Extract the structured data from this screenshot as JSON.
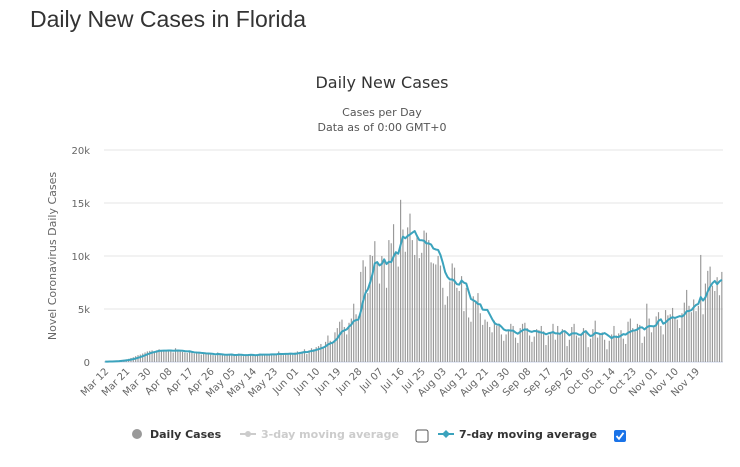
{
  "page": {
    "title": "Daily New Cases in Florida"
  },
  "legend": {
    "items": [
      {
        "label": "Daily Cases",
        "color": "#999999",
        "active": true
      },
      {
        "label": "3-day moving average",
        "color": "#cccccc",
        "active": false,
        "checkbox": false
      },
      {
        "label": "7-day moving average",
        "color": "#3ba3bd",
        "active": true,
        "checkbox": true
      }
    ]
  },
  "chart_data": {
    "type": "bar",
    "title": "Daily New Cases",
    "subtitle_line1": "Cases per Day",
    "subtitle_line2": "Data as of 0:00 GMT+0",
    "ylabel": "Novel Coronavirus Daily Cases",
    "xlabel": "",
    "ylim": [
      0,
      20000
    ],
    "yticks": [
      0,
      5000,
      10000,
      15000,
      20000
    ],
    "ytick_labels": [
      "0",
      "5k",
      "10k",
      "15k",
      "20k"
    ],
    "grid": true,
    "start_date": "Mar 12",
    "xtick_labels": [
      "Mar 12",
      "Mar 21",
      "Mar 30",
      "Apr 08",
      "Apr 17",
      "Apr 26",
      "May 05",
      "May 14",
      "May 23",
      "Jun 01",
      "Jun 10",
      "Jun 19",
      "Jun 28",
      "Jul 07",
      "Jul 16",
      "Jul 25",
      "Aug 03",
      "Aug 12",
      "Aug 21",
      "Aug 30",
      "Sep 08",
      "Sep 17",
      "Sep 26",
      "Oct 05",
      "Oct 14",
      "Oct 23",
      "Nov 01",
      "Nov 10",
      "Nov 19"
    ],
    "xtick_interval_days": 9,
    "series": [
      {
        "name": "Daily Cases",
        "type": "bar",
        "color": "#999999",
        "values": [
          30,
          40,
          60,
          80,
          100,
          120,
          150,
          180,
          200,
          250,
          300,
          380,
          450,
          550,
          650,
          700,
          800,
          900,
          1000,
          1050,
          1100,
          1000,
          1100,
          1200,
          1000,
          1100,
          1050,
          1150,
          1000,
          900,
          1300,
          1100,
          1000,
          950,
          900,
          850,
          1000,
          900,
          800,
          850,
          900,
          700,
          750,
          800,
          850,
          700,
          650,
          600,
          900,
          700,
          650,
          600,
          700,
          750,
          650,
          600,
          700,
          800,
          600,
          550,
          650,
          700,
          750,
          650,
          600,
          700,
          800,
          650,
          750,
          700,
          650,
          800,
          700,
          750,
          1000,
          700,
          650,
          750,
          800,
          850,
          700,
          900,
          1000,
          950,
          1000,
          1200,
          750,
          1100,
          1300,
          1200,
          1400,
          1500,
          1700,
          1300,
          1900,
          2500,
          2000,
          1800,
          2800,
          3200,
          3800,
          4000,
          3300,
          2600,
          3700,
          4100,
          5500,
          4500,
          4300,
          8500,
          9600,
          9000,
          6500,
          10100,
          10000,
          11400,
          9400,
          7400,
          10000,
          9500,
          7000,
          11500,
          11200,
          13000,
          10300,
          9000,
          15300,
          12500,
          10400,
          12700,
          14000,
          11500,
          10100,
          12000,
          9800,
          10300,
          12400,
          12200,
          11500,
          9400,
          9300,
          9200,
          10000,
          9100,
          7000,
          5400,
          6200,
          7600,
          9300,
          8900,
          7000,
          6700,
          8100,
          4800,
          7000,
          4200,
          3800,
          6200,
          5800,
          6500,
          4600,
          3500,
          4000,
          3800,
          3300,
          2800,
          3900,
          3400,
          3500,
          2600,
          2000,
          2600,
          3000,
          3600,
          3400,
          2300,
          1800,
          3200,
          3600,
          3700,
          3200,
          2500,
          1900,
          2400,
          3100,
          3000,
          3400,
          2900,
          1600,
          2500,
          2800,
          3600,
          2100,
          3400,
          2600,
          3100,
          2800,
          1500,
          2100,
          3300,
          3600,
          2500,
          2300,
          2600,
          3200,
          2900,
          1400,
          2200,
          3100,
          3900,
          2300,
          2700,
          2800,
          2100,
          1200,
          2000,
          2600,
          3400,
          2500,
          2700,
          3000,
          2200,
          1700,
          3800,
          4100,
          3200,
          2900,
          3600,
          3500,
          1800,
          2400,
          5500,
          4100,
          2800,
          3400,
          4300,
          4700,
          3400,
          2600,
          4900,
          4400,
          4500,
          5100,
          4200,
          4000,
          3200,
          4600,
          5600,
          6800,
          5300,
          4700,
          5900,
          4800,
          5300,
          10100,
          4500,
          7400,
          8600,
          9000,
          7200,
          6700,
          8000,
          6300,
          8500
        ]
      },
      {
        "name": "7-day moving average",
        "type": "line",
        "color": "#3ba3bd"
      }
    ]
  }
}
